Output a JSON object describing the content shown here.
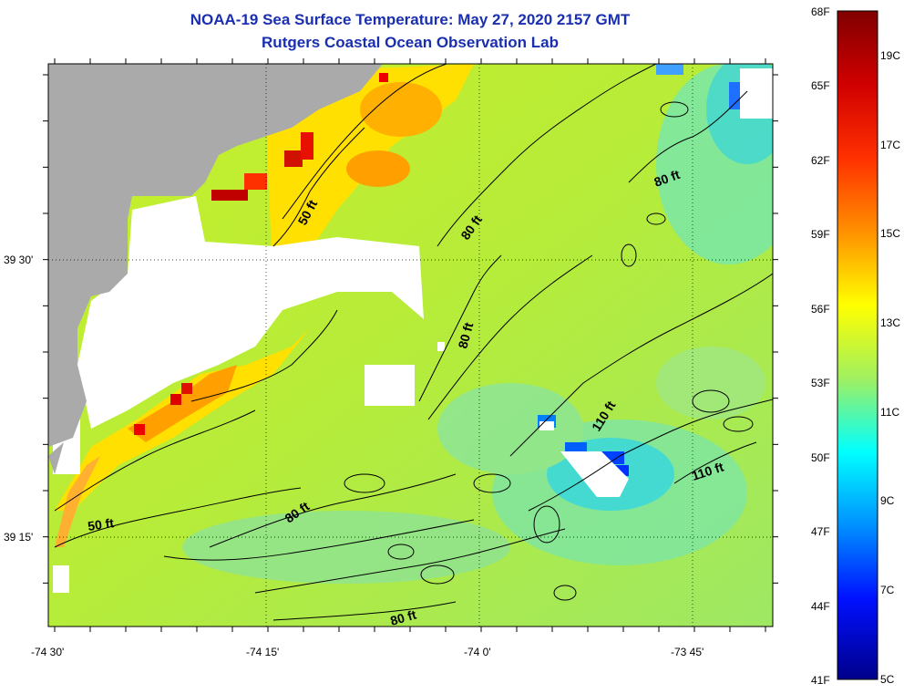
{
  "title": "NOAA-19 Sea Surface Temperature:  May 27, 2020 2157 GMT",
  "subtitle": "Rutgers Coastal Ocean Observation Lab",
  "axes": {
    "lon_ticks": [
      "-74 30'",
      "-74 15'",
      "-74 0'",
      "-73 45'"
    ],
    "lat_ticks": [
      "39 30'",
      "39 15'"
    ]
  },
  "contour_labels": {
    "c50_a": "50 ft",
    "c80_a": "80 ft",
    "c80_b": "80 ft",
    "c80_c": "80 ft",
    "c50_b": "50 ft",
    "c80_d": "80 ft",
    "c110_a": "110 ft",
    "c110_b": "110 ft",
    "c80_e": "80 ft"
  },
  "colorbar": {
    "fahrenheit": [
      "68F",
      "65F",
      "62F",
      "59F",
      "56F",
      "53F",
      "50F",
      "47F",
      "44F",
      "41F"
    ],
    "celsius": [
      "19C",
      "17C",
      "15C",
      "13C",
      "11C",
      "9C",
      "7C",
      "5C"
    ]
  },
  "colors": {
    "title": "#1a2fb0",
    "land": "#aaaaaa",
    "no_data": "#ffffff",
    "scale": [
      "#00008f",
      "#0000ff",
      "#0080ff",
      "#00ffff",
      "#80ff80",
      "#ffff00",
      "#ff8000",
      "#ff0000",
      "#800000"
    ]
  }
}
